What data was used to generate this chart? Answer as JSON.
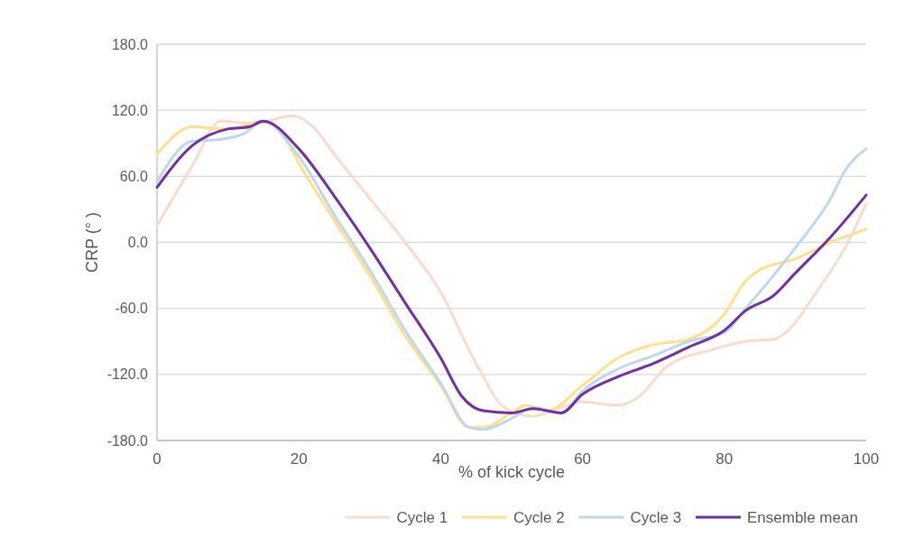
{
  "chart_data": {
    "type": "line",
    "xlabel": "% of kick cycle",
    "ylabel": "CRP (° )",
    "xlim": [
      0,
      100
    ],
    "ylim": [
      -180,
      180
    ],
    "xticks": [
      0,
      20,
      40,
      60,
      80,
      100
    ],
    "yticks": [
      {
        "value": -180,
        "label": "-180.0"
      },
      {
        "value": -120,
        "label": "-120.0"
      },
      {
        "value": -60,
        "label": "-60.0"
      },
      {
        "value": 0,
        "label": "0.0"
      },
      {
        "value": 60,
        "label": "60.0"
      },
      {
        "value": 120,
        "label": "120.0"
      },
      {
        "value": 180,
        "label": "180.0"
      }
    ],
    "grid": "y",
    "legend": "bottom",
    "line_style": "solid",
    "marker": "none",
    "series": [
      {
        "name": "Cycle 1",
        "color": "#f8dccb",
        "x": [
          0,
          5,
          9,
          14,
          19,
          22,
          25,
          30,
          35,
          40,
          45,
          49,
          53,
          57,
          60,
          65,
          68,
          72,
          78,
          83,
          87,
          89,
          93,
          97,
          100
        ],
        "values": [
          15,
          70,
          110,
          108,
          115,
          105,
          80,
          40,
          0,
          -45,
          -110,
          -150,
          -158,
          -150,
          -145,
          -148,
          -140,
          -112,
          -98,
          -90,
          -88,
          -80,
          -45,
          -5,
          35
        ]
      },
      {
        "name": "Cycle 2",
        "color": "#ffe08a",
        "x": [
          0,
          5,
          10,
          15,
          18,
          20,
          25,
          30,
          35,
          40,
          44,
          46,
          50,
          52,
          55,
          60,
          65,
          70,
          75,
          80,
          83,
          85,
          90,
          95,
          100
        ],
        "values": [
          80,
          105,
          103,
          110,
          95,
          72,
          20,
          -30,
          -85,
          -130,
          -168,
          -168,
          -155,
          -148,
          -153,
          -130,
          -105,
          -93,
          -88,
          -65,
          -35,
          -25,
          -15,
          0,
          12
        ]
      },
      {
        "name": "Cycle 3",
        "color": "#bdd7ee",
        "x": [
          0,
          5,
          8,
          12,
          15,
          20,
          25,
          30,
          35,
          40,
          44,
          46,
          50,
          53,
          57,
          60,
          65,
          70,
          75,
          80,
          83,
          85,
          90,
          95,
          97,
          100
        ],
        "values": [
          55,
          92,
          93,
          98,
          110,
          78,
          25,
          -25,
          -80,
          -128,
          -168,
          -170,
          -160,
          -150,
          -155,
          -135,
          -115,
          -103,
          -90,
          -82,
          -60,
          -45,
          -5,
          40,
          65,
          85
        ]
      },
      {
        "name": "Ensemble mean",
        "color": "#7030a0",
        "x": [
          0,
          5,
          10,
          13,
          15,
          20,
          25,
          30,
          35,
          40,
          43,
          46,
          50,
          53,
          57,
          60,
          65,
          70,
          75,
          80,
          83,
          87,
          90,
          95,
          100
        ],
        "values": [
          50,
          88,
          103,
          105,
          110,
          85,
          42,
          -5,
          -55,
          -105,
          -140,
          -153,
          -155,
          -151,
          -155,
          -138,
          -122,
          -110,
          -95,
          -80,
          -62,
          -48,
          -28,
          5,
          43
        ]
      }
    ]
  }
}
